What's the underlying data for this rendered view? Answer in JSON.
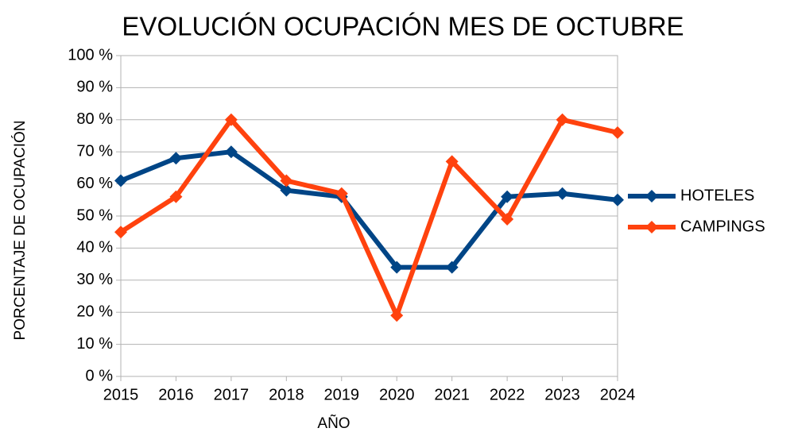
{
  "chart_data": {
    "type": "line",
    "title": "EVOLUCIÓN OCUPACIÓN MES DE OCTUBRE",
    "x_label": "AÑO",
    "y_label": "PORCENTAJE DE OCUPACIÓN",
    "categories": [
      "2015",
      "2016",
      "2017",
      "2018",
      "2019",
      "2020",
      "2021",
      "2022",
      "2023",
      "2024"
    ],
    "series": [
      {
        "name": "HOTELES",
        "color": "#004586",
        "values": [
          61,
          68,
          70,
          58,
          56,
          34,
          34,
          56,
          57,
          55
        ]
      },
      {
        "name": "CAMPINGS",
        "color": "#ff420e",
        "values": [
          45,
          56,
          80,
          61,
          57,
          19,
          67,
          49,
          80,
          76
        ]
      }
    ],
    "ylim": [
      0,
      100
    ],
    "yticks": [
      {
        "value": 0,
        "label": "0 %"
      },
      {
        "value": 10,
        "label": "10 %"
      },
      {
        "value": 20,
        "label": "20 %"
      },
      {
        "value": 30,
        "label": "30 %"
      },
      {
        "value": 40,
        "label": "40 %"
      },
      {
        "value": 50,
        "label": "50 %"
      },
      {
        "value": 60,
        "label": "60 %"
      },
      {
        "value": 70,
        "label": "70 %"
      },
      {
        "value": 80,
        "label": "80 %"
      },
      {
        "value": 90,
        "label": "90 %"
      },
      {
        "value": 100,
        "label": "100 %"
      }
    ],
    "grid": true,
    "legend": "right"
  }
}
